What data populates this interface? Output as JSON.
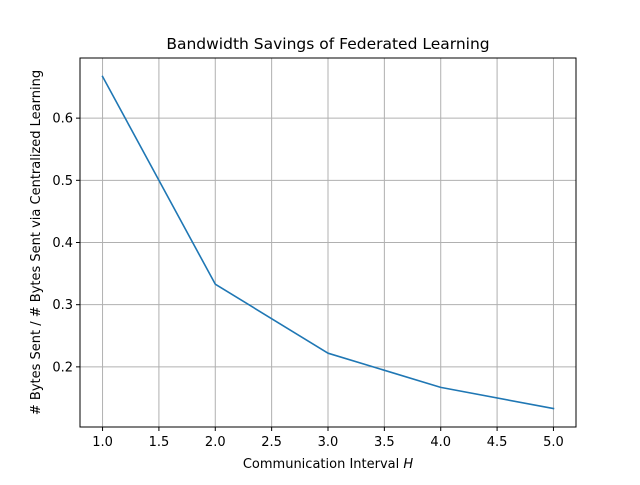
{
  "chart_data": {
    "type": "line",
    "title": "Bandwidth Savings of Federated Learning",
    "xlabel": "Communication Interval",
    "xlabel_var": "H",
    "ylabel": "# Bytes Sent / # Bytes Sent via Centralized Learning",
    "xlim": [
      0.8,
      5.2
    ],
    "ylim": [
      0.1033,
      0.6967
    ],
    "xticks": [
      1.0,
      1.5,
      2.0,
      2.5,
      3.0,
      3.5,
      4.0,
      4.5,
      5.0
    ],
    "xtick_labels": [
      "1.0",
      "1.5",
      "2.0",
      "2.5",
      "3.0",
      "3.5",
      "4.0",
      "4.5",
      "5.0"
    ],
    "yticks": [
      0.2,
      0.3,
      0.4,
      0.5,
      0.6
    ],
    "ytick_labels": [
      "0.2",
      "0.3",
      "0.4",
      "0.5",
      "0.6"
    ],
    "grid": true,
    "series": [
      {
        "x": [
          1,
          2,
          3,
          4,
          5
        ],
        "values": [
          0.667,
          0.333,
          0.222,
          0.167,
          0.133
        ],
        "color": "#1f77b4"
      }
    ]
  }
}
